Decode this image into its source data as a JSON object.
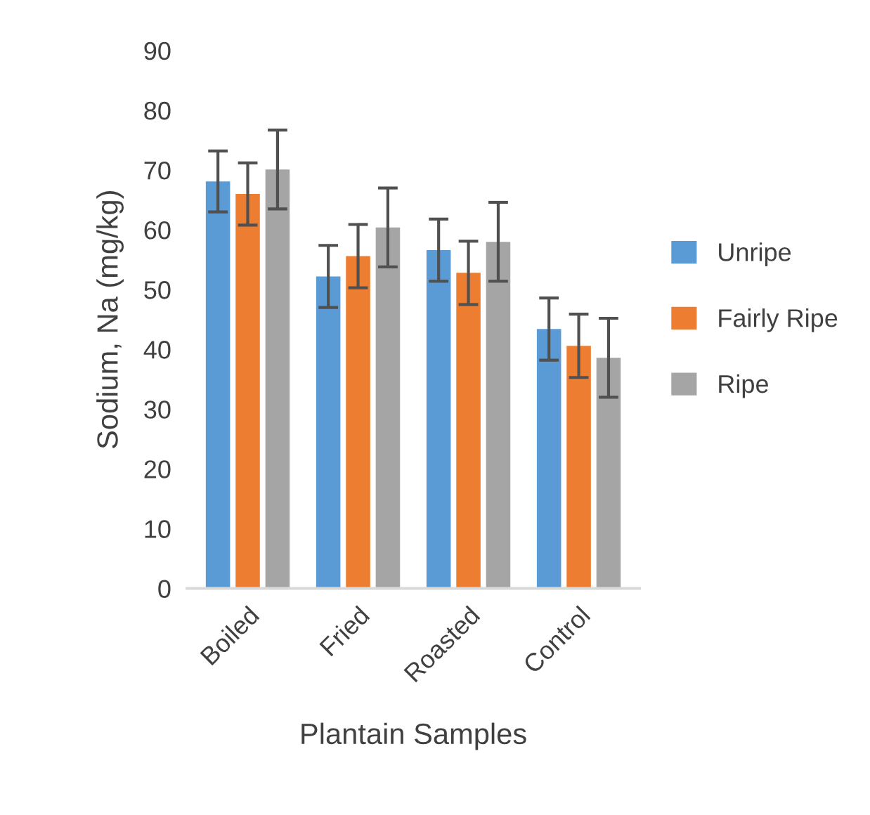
{
  "chart_data": {
    "type": "bar",
    "xlabel": "Plantain Samples",
    "ylabel": "Sodium, Na (mg/kg)",
    "categories": [
      "Boiled",
      "Fried",
      "Roasted",
      "Control"
    ],
    "series": [
      {
        "name": "Unripe",
        "color": "#5b9bd5",
        "values": [
          68.1,
          52.2,
          56.6,
          43.4
        ],
        "errors": [
          5.1,
          5.2,
          5.2,
          5.2
        ]
      },
      {
        "name": "Fairly Ripe",
        "color": "#ed7d31",
        "values": [
          66.0,
          55.6,
          52.8,
          40.6
        ],
        "errors": [
          5.2,
          5.3,
          5.3,
          5.3
        ]
      },
      {
        "name": "Ripe",
        "color": "#a5a5a5",
        "values": [
          70.1,
          60.4,
          58.0,
          38.6
        ],
        "errors": [
          6.6,
          6.6,
          6.6,
          6.6
        ]
      }
    ],
    "ylim": [
      0,
      90
    ],
    "yticks": [
      0,
      10,
      20,
      30,
      40,
      50,
      60,
      70,
      80,
      90
    ],
    "grid": false,
    "legend": "right"
  }
}
